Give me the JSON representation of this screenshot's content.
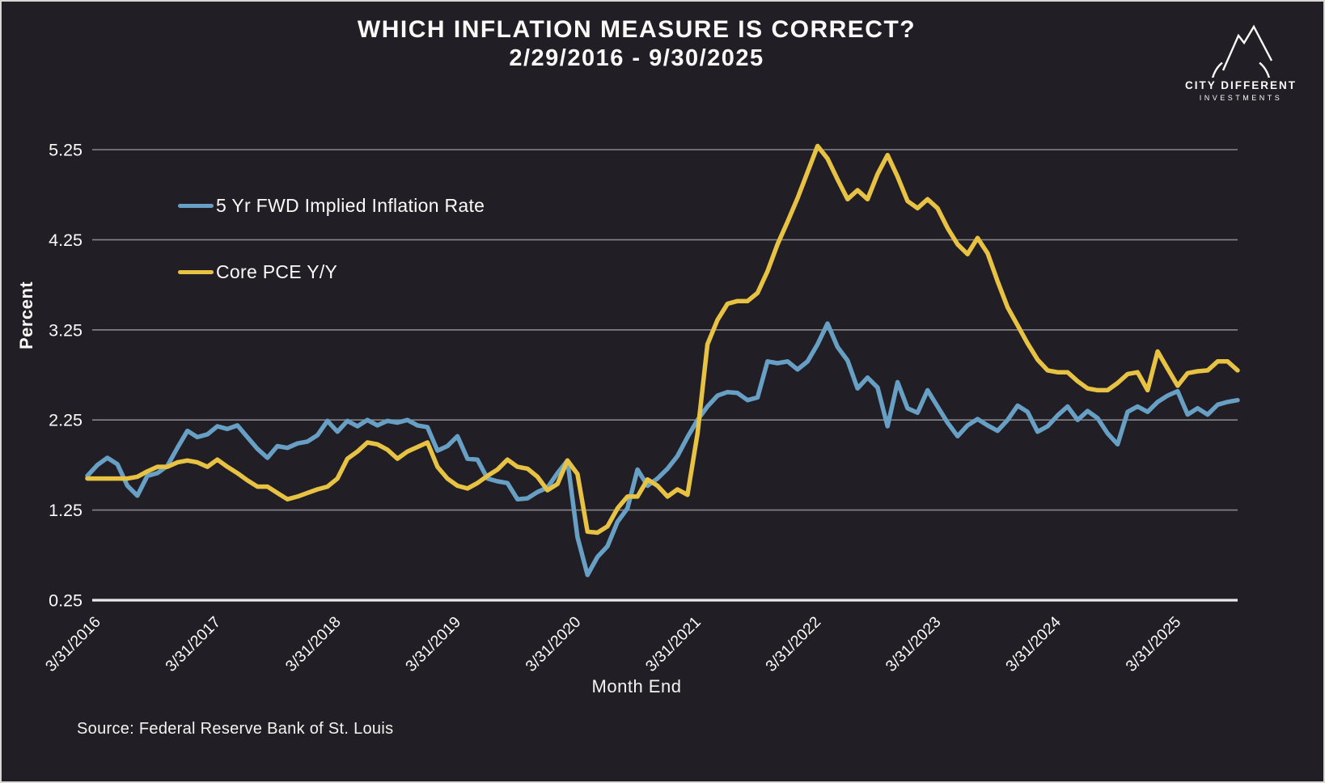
{
  "title": {
    "line1": "WHICH INFLATION MEASURE IS CORRECT?",
    "line2": "2/29/2016 - 9/30/2025"
  },
  "logo": {
    "name": "CITY DIFFERENT",
    "sub": "INVESTMENTS"
  },
  "source": "Source: Federal Reserve Bank of St. Louis",
  "colors": {
    "background": "#211f25",
    "frame_border": "#d9d8d4",
    "gridline": "#87868b",
    "axis_line": "#eceae6",
    "text": "#fbfaf7",
    "series_blue": "#67a0c4",
    "series_gold": "#e8c343"
  },
  "chart_data": {
    "type": "line",
    "title": "WHICH INFLATION MEASURE IS CORRECT? 2/29/2016 - 9/30/2025",
    "xlabel": "Month End",
    "ylabel": "Percent",
    "x_start": "2/29/2016",
    "x_end": "9/30/2025",
    "frequency": "monthly",
    "n_points": 116,
    "ylim": [
      0.25,
      5.25
    ],
    "yticks": [
      0.25,
      1.25,
      2.25,
      3.25,
      4.25,
      5.25
    ],
    "xticks": [
      "3/31/2016",
      "3/31/2017",
      "3/31/2018",
      "3/31/2019",
      "3/31/2020",
      "3/31/2021",
      "3/31/2022",
      "3/31/2023",
      "3/31/2024",
      "3/31/2025"
    ],
    "grid": true,
    "legend_position": "upper-left-inside",
    "series": [
      {
        "name": "5 Yr FWD Implied Inflation Rate",
        "color": "#67a0c4",
        "values": [
          1.63,
          1.75,
          1.83,
          1.76,
          1.52,
          1.41,
          1.63,
          1.66,
          1.74,
          1.94,
          2.13,
          2.06,
          2.09,
          2.18,
          2.15,
          2.19,
          2.06,
          1.93,
          1.83,
          1.96,
          1.94,
          1.99,
          2.01,
          2.08,
          2.24,
          2.12,
          2.24,
          2.18,
          2.25,
          2.19,
          2.24,
          2.22,
          2.25,
          2.19,
          2.17,
          1.91,
          1.96,
          2.07,
          1.82,
          1.81,
          1.6,
          1.57,
          1.55,
          1.37,
          1.38,
          1.45,
          1.5,
          1.66,
          1.8,
          0.95,
          0.53,
          0.73,
          0.85,
          1.12,
          1.27,
          1.7,
          1.52,
          1.6,
          1.71,
          1.85,
          2.06,
          2.25,
          2.4,
          2.52,
          2.56,
          2.55,
          2.47,
          2.5,
          2.9,
          2.88,
          2.9,
          2.81,
          2.9,
          3.09,
          3.32,
          3.06,
          2.91,
          2.6,
          2.72,
          2.61,
          2.18,
          2.67,
          2.38,
          2.33,
          2.58,
          2.4,
          2.22,
          2.07,
          2.19,
          2.26,
          2.19,
          2.13,
          2.25,
          2.41,
          2.34,
          2.12,
          2.18,
          2.3,
          2.4,
          2.25,
          2.35,
          2.27,
          2.1,
          1.98,
          2.34,
          2.4,
          2.34,
          2.45,
          2.52,
          2.57,
          2.31,
          2.38,
          2.31,
          2.42,
          2.45,
          2.47
        ]
      },
      {
        "name": "Core PCE Y/Y",
        "color": "#e8c343",
        "values": [
          1.6,
          1.6,
          1.6,
          1.6,
          1.6,
          1.62,
          1.68,
          1.73,
          1.73,
          1.78,
          1.8,
          1.78,
          1.73,
          1.81,
          1.73,
          1.66,
          1.58,
          1.51,
          1.51,
          1.44,
          1.37,
          1.4,
          1.44,
          1.48,
          1.51,
          1.6,
          1.82,
          1.9,
          2.0,
          1.98,
          1.92,
          1.82,
          1.9,
          1.95,
          2.0,
          1.73,
          1.6,
          1.52,
          1.49,
          1.55,
          1.63,
          1.7,
          1.81,
          1.73,
          1.71,
          1.62,
          1.47,
          1.54,
          1.8,
          1.65,
          1.01,
          1.0,
          1.07,
          1.27,
          1.4,
          1.4,
          1.59,
          1.52,
          1.4,
          1.48,
          1.42,
          2.1,
          3.09,
          3.36,
          3.54,
          3.57,
          3.57,
          3.66,
          3.9,
          4.2,
          4.45,
          4.71,
          5.0,
          5.29,
          5.15,
          4.92,
          4.7,
          4.8,
          4.7,
          4.98,
          5.19,
          4.95,
          4.68,
          4.6,
          4.7,
          4.6,
          4.38,
          4.2,
          4.09,
          4.27,
          4.1,
          3.79,
          3.5,
          3.3,
          3.1,
          2.92,
          2.8,
          2.78,
          2.78,
          2.68,
          2.6,
          2.58,
          2.58,
          2.66,
          2.76,
          2.78,
          2.58,
          3.01,
          2.82,
          2.63,
          2.77,
          2.79,
          2.8,
          2.9,
          2.9,
          2.8
        ]
      }
    ]
  }
}
